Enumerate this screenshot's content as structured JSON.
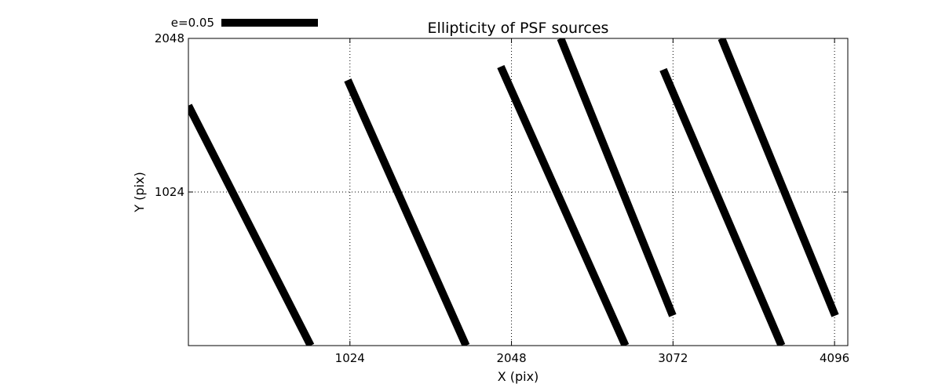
{
  "chart_data": {
    "type": "quiver",
    "title": "Ellipticity of PSF sources",
    "xlabel": "X (pix)",
    "ylabel": "Y (pix)",
    "xlim": [
      0,
      4180
    ],
    "ylim": [
      0,
      2048
    ],
    "x_ticks": [
      1024,
      2048,
      3072,
      4096
    ],
    "y_ticks": [
      1024,
      2048
    ],
    "grid": true,
    "legend": {
      "label": "e=0.05",
      "position": "top-left"
    },
    "series": [
      {
        "segments": [
          {
            "x": [
              0,
              775
            ],
            "y": [
              1600,
              0
            ]
          },
          {
            "x": [
              1010,
              1760
            ],
            "y": [
              1770,
              0
            ]
          },
          {
            "x": [
              1980,
              2770
            ],
            "y": [
              1860,
              0
            ]
          },
          {
            "x": [
              2360,
              3070
            ],
            "y": [
              2048,
              200
            ]
          },
          {
            "x": [
              3010,
              3760
            ],
            "y": [
              1840,
              0
            ]
          },
          {
            "x": [
              3380,
              4100
            ],
            "y": [
              2048,
              200
            ]
          }
        ]
      }
    ]
  }
}
